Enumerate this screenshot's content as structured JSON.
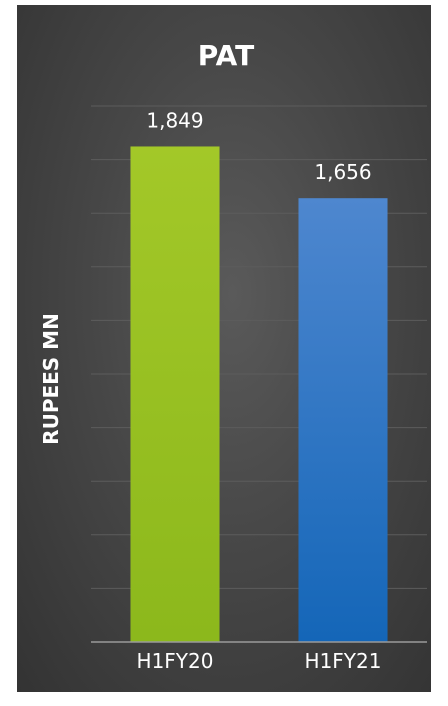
{
  "chart_data": {
    "type": "bar",
    "title": "PAT",
    "xlabel": "",
    "ylabel": "RUPEES MN",
    "categories": [
      "H1FY20",
      "H1FY21"
    ],
    "values": [
      1849,
      1656
    ],
    "data_labels": [
      "1,849",
      "1,656"
    ],
    "ylim": [
      0,
      2000
    ],
    "grid": true,
    "legend": "none",
    "colors": {
      "H1FY20": [
        "#a3c828",
        "#8cb81c"
      ],
      "H1FY21": [
        "#4e87cf",
        "#1466b8"
      ],
      "gridline": "#5c5c5c",
      "axis": "#9a9a9a"
    }
  }
}
